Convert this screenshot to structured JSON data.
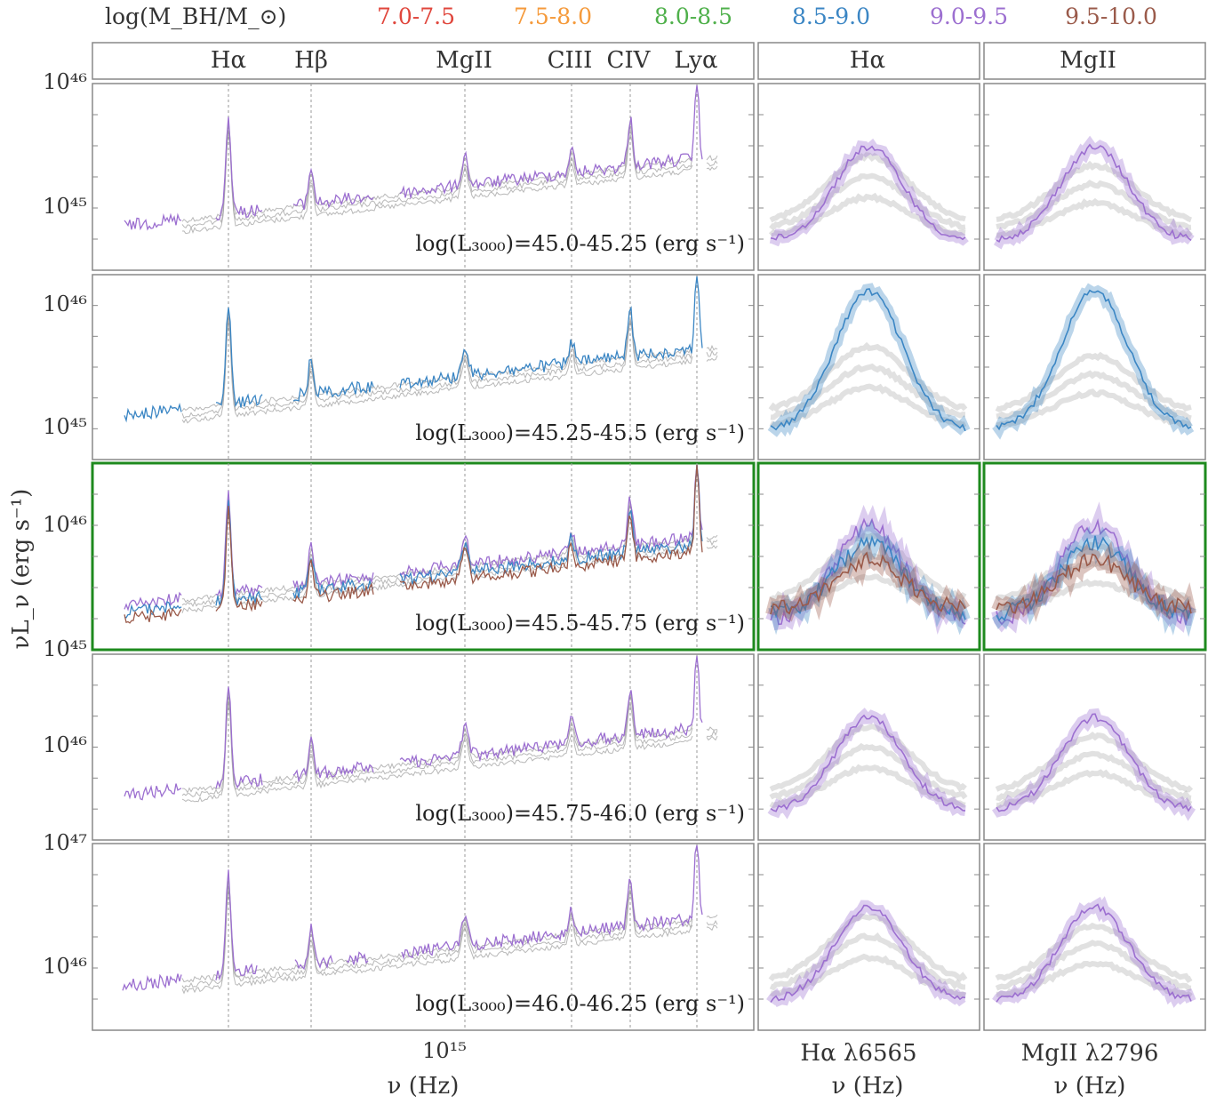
{
  "chart_data": {
    "type": "line",
    "legend": {
      "title": "log(M_BH/M_⊙)",
      "placement": "top",
      "entries": [
        {
          "label": "7.0-7.5",
          "color": "#e0463c"
        },
        {
          "label": "7.5-8.0",
          "color": "#f59a3b"
        },
        {
          "label": "8.0-8.5",
          "color": "#4fb04b"
        },
        {
          "label": "8.5-9.0",
          "color": "#3b86c4"
        },
        {
          "label": "9.0-9.5",
          "color": "#9c6fd0"
        },
        {
          "label": "9.5-10.0",
          "color": "#9a5a4a"
        }
      ]
    },
    "header_lines": [
      "Hα",
      "Hβ",
      "MgII",
      "CIII",
      "CIV",
      "Lyα"
    ],
    "header_zoom": [
      "Hα",
      "MgII"
    ],
    "ylabel": "νL_ν (erg s⁻¹)",
    "xlabel": "ν (Hz)",
    "x_tick_label": "10¹⁵",
    "zoom_xlabels": [
      "Hα λ6565",
      "MgII λ2796"
    ],
    "rows": [
      {
        "annotation": "log(L₃₀₀₀)=45.0-45.25 (erg s⁻¹)",
        "y_ticks": [
          "10⁴⁶",
          "10⁴⁵"
        ],
        "highlighted": false,
        "series_colors": [
          "#9c6fd0"
        ]
      },
      {
        "annotation": "log(L₃₀₀₀)=45.25-45.5 (erg s⁻¹)",
        "y_ticks": [
          "10⁴⁶",
          "10⁴⁵"
        ],
        "highlighted": false,
        "series_colors": [
          "#3b86c4"
        ]
      },
      {
        "annotation": "log(L₃₀₀₀)=45.5-45.75 (erg s⁻¹)",
        "y_ticks": [
          "10⁴⁶",
          "10⁴⁵"
        ],
        "highlighted": true,
        "series_colors": [
          "#9c6fd0",
          "#3b86c4",
          "#9a5a4a"
        ]
      },
      {
        "annotation": "log(L₃₀₀₀)=45.75-46.0 (erg s⁻¹)",
        "y_ticks": [
          "10⁴⁶",
          "10⁴⁷"
        ],
        "highlighted": false,
        "series_colors": [
          "#9c6fd0"
        ]
      },
      {
        "annotation": "log(L₃₀₀₀)=46.0-46.25 (erg s⁻¹)",
        "y_ticks": [
          "10⁴⁶"
        ],
        "highlighted": false,
        "series_colors": [
          "#9c6fd0"
        ]
      }
    ]
  }
}
